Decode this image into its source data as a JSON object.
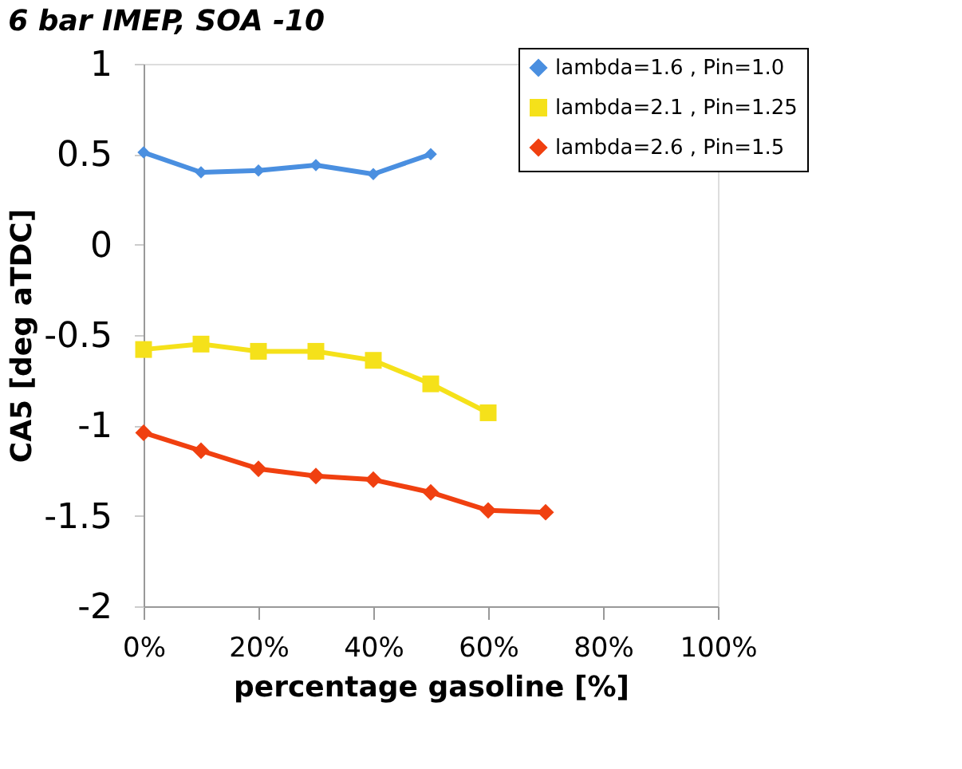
{
  "chart_data": {
    "type": "line",
    "title": "6 bar IMEP, SOA -10",
    "xlabel": "percentage gasoline [%]",
    "ylabel": "CA5 [deg aTDC]",
    "xlim": [
      0,
      1
    ],
    "xticks": [
      {
        "value": 0,
        "label": "0%"
      },
      {
        "value": 0.2,
        "label": "20%"
      },
      {
        "value": 0.4,
        "label": "40%"
      },
      {
        "value": 0.6,
        "label": "60%"
      },
      {
        "value": 0.8,
        "label": "80%"
      },
      {
        "value": 1,
        "label": "100%"
      }
    ],
    "ylim": [
      -2,
      1
    ],
    "yticks": [
      -2,
      -1.5,
      -1,
      -0.5,
      0,
      0.5,
      1
    ],
    "grid": false,
    "legend": "top right",
    "series": [
      {
        "name": "lambda=1.6 , Pin=1.0",
        "color": "#4a8fe0",
        "marker": "diamond",
        "x": [
          0,
          0.1,
          0.2,
          0.3,
          0.4,
          0.5
        ],
        "values": [
          0.51,
          0.4,
          0.41,
          0.44,
          0.39,
          0.5
        ]
      },
      {
        "name": "lambda=2.1 , Pin=1.25",
        "color": "#f5e11a",
        "marker": "square",
        "x": [
          0,
          0.1,
          0.2,
          0.3,
          0.4,
          0.5,
          0.6
        ],
        "values": [
          -0.58,
          -0.55,
          -0.59,
          -0.59,
          -0.64,
          -0.77,
          -0.93
        ]
      },
      {
        "name": "lambda=2.6 , Pin=1.5",
        "color": "#f04010",
        "marker": "diamond",
        "x": [
          0,
          0.1,
          0.2,
          0.3,
          0.4,
          0.5,
          0.6,
          0.7
        ],
        "values": [
          -1.04,
          -1.14,
          -1.24,
          -1.28,
          -1.3,
          -1.37,
          -1.47,
          -1.48
        ]
      }
    ]
  }
}
